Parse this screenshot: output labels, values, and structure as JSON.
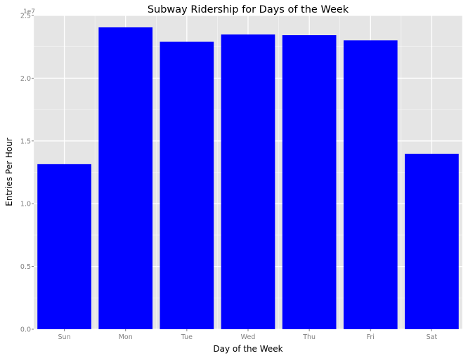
{
  "chart_data": {
    "type": "bar",
    "title": "Subway Ridership for Days of the Week",
    "xlabel": "Day of the Week",
    "ylabel": "Entries Per Hour",
    "categories": [
      "Sun",
      "Mon",
      "Tue",
      "Wed",
      "Thu",
      "Fri",
      "Sat"
    ],
    "values": [
      13150000,
      24050000,
      22900000,
      23480000,
      23430000,
      23020000,
      13980000
    ],
    "ylim": [
      0,
      25000000
    ],
    "yticks": [
      0,
      5000000,
      10000000,
      15000000,
      20000000,
      25000000
    ],
    "ytick_labels": [
      "0.0",
      "0.5",
      "1.0",
      "1.5",
      "2.0",
      "2.5"
    ],
    "y_exponent_label": "1e7",
    "grid": true,
    "bar_color": "#0000ff",
    "panel_background": "#e5e5e5",
    "grid_color": "#ffffff"
  }
}
